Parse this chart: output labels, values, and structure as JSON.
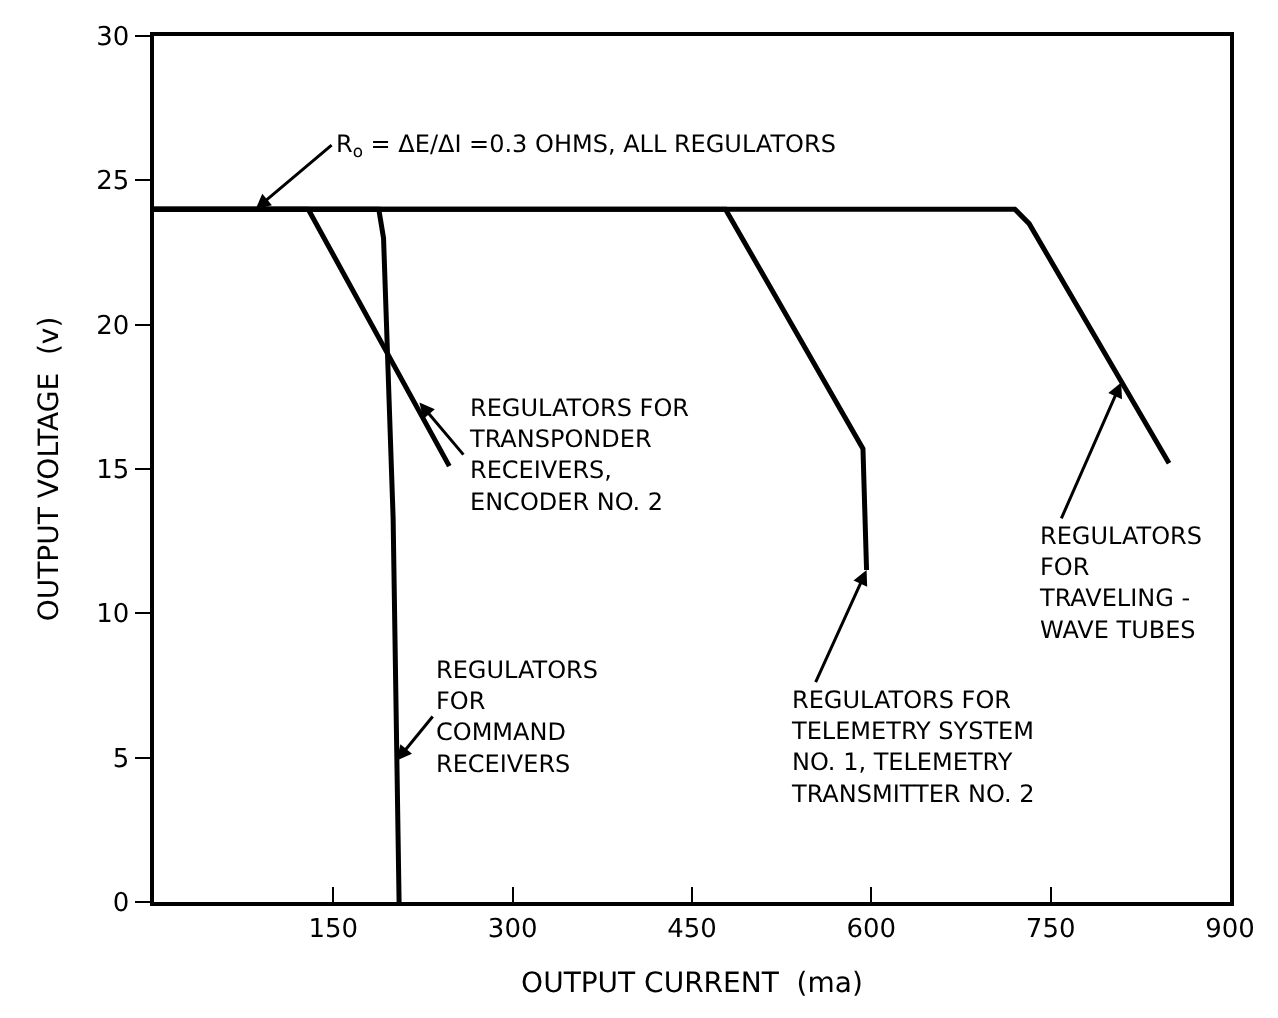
{
  "chart_data": {
    "type": "line",
    "xlabel": "OUTPUT CURRENT  (ma)",
    "ylabel": "OUTPUT VOLTAGE  (v)",
    "xlim": [
      0,
      900
    ],
    "xticks": [
      150,
      300,
      450,
      600,
      750,
      900
    ],
    "ylim": [
      0,
      30
    ],
    "yticks": [
      0,
      5,
      10,
      15,
      20,
      25,
      30
    ],
    "grid": false,
    "marker": "none",
    "line_style": "solid",
    "series": [
      {
        "color": "#000000",
        "x": [
          0,
          129,
          247
        ],
        "values": [
          24,
          24,
          15.1
        ]
      },
      {
        "color": "#000000",
        "x": [
          0,
          188,
          192,
          200,
          205
        ],
        "values": [
          24,
          24,
          23,
          13.3,
          0
        ]
      },
      {
        "color": "#000000",
        "x": [
          0,
          478,
          593,
          596
        ],
        "values": [
          24,
          24,
          15.7,
          11.5
        ]
      },
      {
        "color": "#000000",
        "x": [
          0,
          720,
          732,
          849
        ],
        "values": [
          24,
          24,
          23.5,
          15.2
        ]
      }
    ],
    "annotations": [
      {
        "text": "R$_{o}$ = ΔE/ΔI =0.3 OHMS, ALL REGULATORS",
        "x": 85,
        "y": 24
      },
      {
        "text": "REGULATORS FOR\nTRANSPONDER\nRECEIVERS,\nENCODER NO. 2",
        "x": 222,
        "y": 17.3
      },
      {
        "text": "REGULATORS\nFOR\nCOMMAND\nRECEIVERS",
        "x": 203,
        "y": 4.9
      },
      {
        "text": "REGULATORS FOR\nTELEMETRY SYSTEM\nNO. 1, TELEMETRY\nTRANSMITTER NO. 2",
        "x": 596,
        "y": 11.5
      },
      {
        "text": "REGULATORS\nFOR\nTRAVELING -\nWAVE TUBES",
        "x": 809,
        "y": 18.0
      }
    ]
  }
}
